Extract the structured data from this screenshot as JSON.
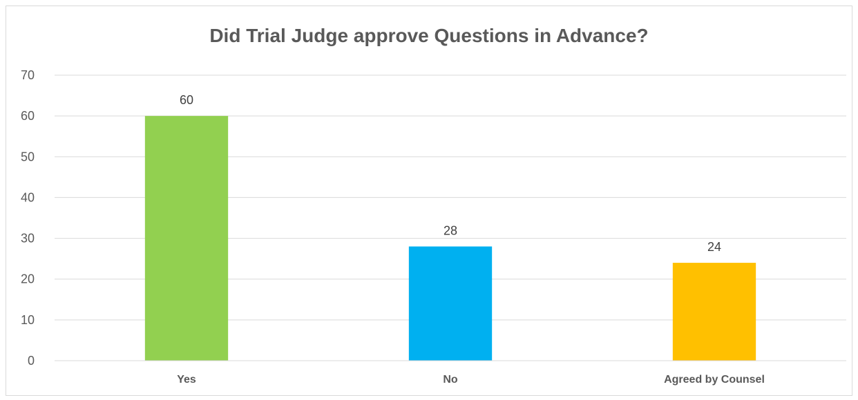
{
  "chart_data": {
    "type": "bar",
    "title": "Did Trial Judge approve Questions in Advance?",
    "xlabel": "",
    "ylabel": "",
    "categories": [
      "Yes",
      "No",
      "Agreed by Counsel"
    ],
    "values": [
      60,
      28,
      24
    ],
    "data_labels": [
      "60",
      "28",
      "24"
    ],
    "colors": [
      "#92d050",
      "#00b0f0",
      "#ffc000"
    ],
    "ylim": [
      0,
      70
    ],
    "yticks": [
      0,
      10,
      20,
      30,
      40,
      50,
      60,
      70
    ],
    "grid": true,
    "legend": "none"
  }
}
